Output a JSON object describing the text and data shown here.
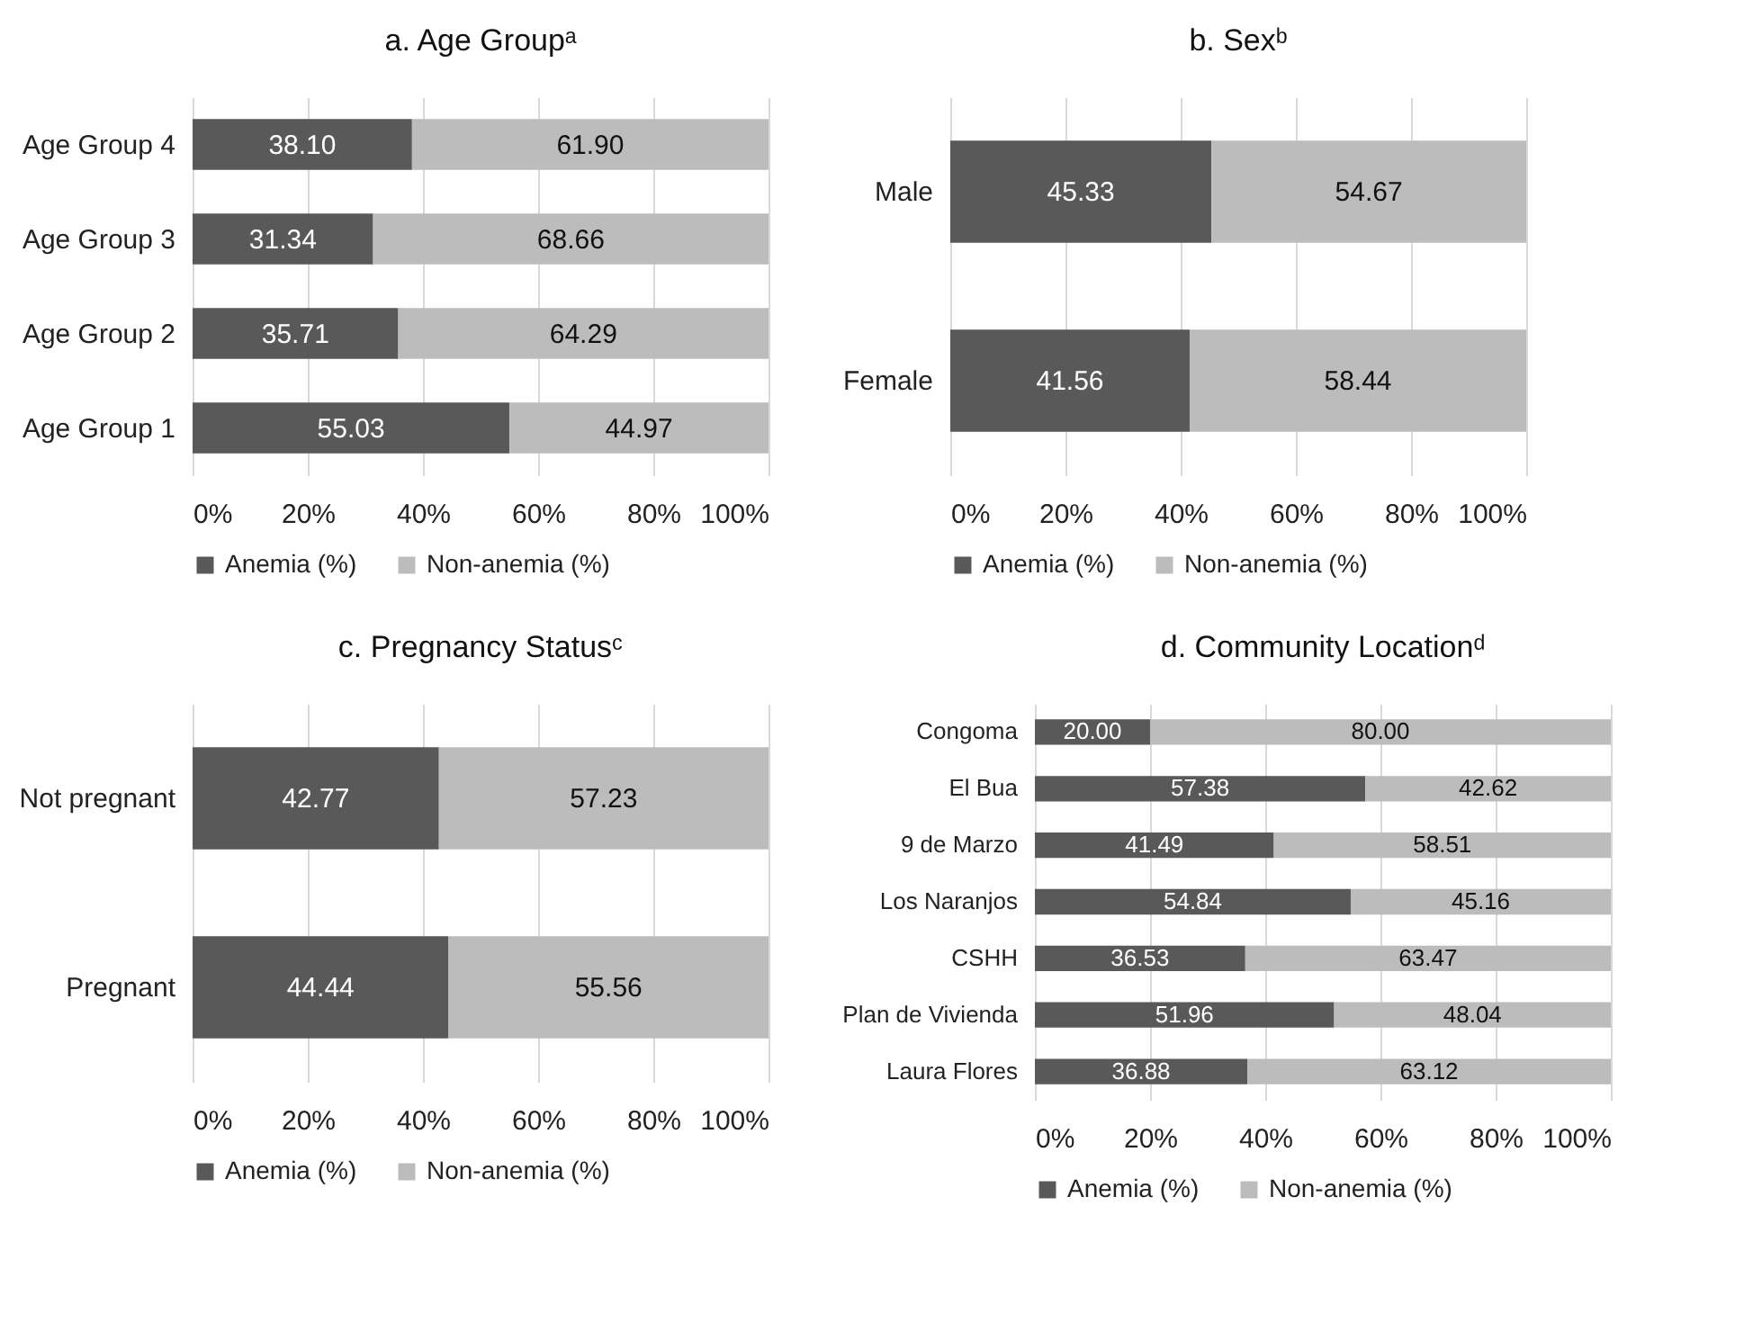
{
  "chart_data": [
    {
      "type": "bar",
      "orientation": "horizontal",
      "stacked": true,
      "title": "a. Age Groupᵃ",
      "categories": [
        "Age Group 4",
        "Age Group 3",
        "Age Group 2",
        "Age Group 1"
      ],
      "series": [
        {
          "name": "Anemia (%)",
          "color": "#595959",
          "values": [
            38.1,
            31.34,
            35.71,
            55.03
          ],
          "value_labels": [
            "38.10",
            "31.34",
            "35.71",
            "55.03"
          ]
        },
        {
          "name": "Non-anemia (%)",
          "color": "#bcbcbc",
          "values": [
            61.9,
            68.66,
            64.29,
            44.97
          ],
          "value_labels": [
            "61.90",
            "68.66",
            "64.29",
            "44.97"
          ]
        }
      ],
      "xlim": [
        0,
        100
      ],
      "xticks": [
        {
          "value": 0,
          "label": "0%"
        },
        {
          "value": 20,
          "label": "20%"
        },
        {
          "value": 40,
          "label": "40%"
        },
        {
          "value": 60,
          "label": "60%"
        },
        {
          "value": 80,
          "label": "80%"
        },
        {
          "value": 100,
          "label": "100%"
        }
      ],
      "grid": "x",
      "legend": "bottom"
    },
    {
      "type": "bar",
      "orientation": "horizontal",
      "stacked": true,
      "title": "b. Sexᵇ",
      "categories": [
        "Male",
        "Female"
      ],
      "series": [
        {
          "name": "Anemia (%)",
          "color": "#595959",
          "values": [
            45.33,
            41.56
          ],
          "value_labels": [
            "45.33",
            "41.56"
          ]
        },
        {
          "name": "Non-anemia (%)",
          "color": "#bcbcbc",
          "values": [
            54.67,
            58.44
          ],
          "value_labels": [
            "54.67",
            "58.44"
          ]
        }
      ],
      "xlim": [
        0,
        100
      ],
      "xticks": [
        {
          "value": 0,
          "label": "0%"
        },
        {
          "value": 20,
          "label": "20%"
        },
        {
          "value": 40,
          "label": "40%"
        },
        {
          "value": 60,
          "label": "60%"
        },
        {
          "value": 80,
          "label": "80%"
        },
        {
          "value": 100,
          "label": "100%"
        }
      ],
      "grid": "x",
      "legend": "bottom"
    },
    {
      "type": "bar",
      "orientation": "horizontal",
      "stacked": true,
      "title": "c. Pregnancy Statusᶜ",
      "categories": [
        "Not pregnant",
        "Pregnant"
      ],
      "series": [
        {
          "name": "Anemia (%)",
          "color": "#595959",
          "values": [
            42.77,
            44.44
          ],
          "value_labels": [
            "42.77",
            "44.44"
          ]
        },
        {
          "name": "Non-anemia (%)",
          "color": "#bcbcbc",
          "values": [
            57.23,
            55.56
          ],
          "value_labels": [
            "57.23",
            "55.56"
          ]
        }
      ],
      "xlim": [
        0,
        100
      ],
      "xticks": [
        {
          "value": 0,
          "label": "0%"
        },
        {
          "value": 20,
          "label": "20%"
        },
        {
          "value": 40,
          "label": "40%"
        },
        {
          "value": 60,
          "label": "60%"
        },
        {
          "value": 80,
          "label": "80%"
        },
        {
          "value": 100,
          "label": "100%"
        }
      ],
      "grid": "x",
      "legend": "bottom"
    },
    {
      "type": "bar",
      "orientation": "horizontal",
      "stacked": true,
      "title": "d. Community Locationᵈ",
      "categories": [
        "Congoma",
        "El Bua",
        "9 de Marzo",
        "Los Naranjos",
        "CSHH",
        "Plan de Vivienda",
        "Laura Flores"
      ],
      "series": [
        {
          "name": "Anemia (%)",
          "color": "#595959",
          "values": [
            20.0,
            57.38,
            41.49,
            54.84,
            36.53,
            51.96,
            36.88
          ],
          "value_labels": [
            "20.00",
            "57.38",
            "41.49",
            "54.84",
            "36.53",
            "51.96",
            "36.88"
          ]
        },
        {
          "name": "Non-anemia (%)",
          "color": "#bcbcbc",
          "values": [
            80.0,
            42.62,
            58.51,
            45.16,
            63.47,
            48.04,
            63.12
          ],
          "value_labels": [
            "80.00",
            "42.62",
            "58.51",
            "45.16",
            "63.47",
            "48.04",
            "63.12"
          ]
        }
      ],
      "xlim": [
        0,
        100
      ],
      "xticks": [
        {
          "value": 0,
          "label": "0%"
        },
        {
          "value": 20,
          "label": "20%"
        },
        {
          "value": 40,
          "label": "40%"
        },
        {
          "value": 60,
          "label": "60%"
        },
        {
          "value": 80,
          "label": "80%"
        },
        {
          "value": 100,
          "label": "100%"
        }
      ],
      "grid": "x",
      "legend": "bottom"
    }
  ]
}
